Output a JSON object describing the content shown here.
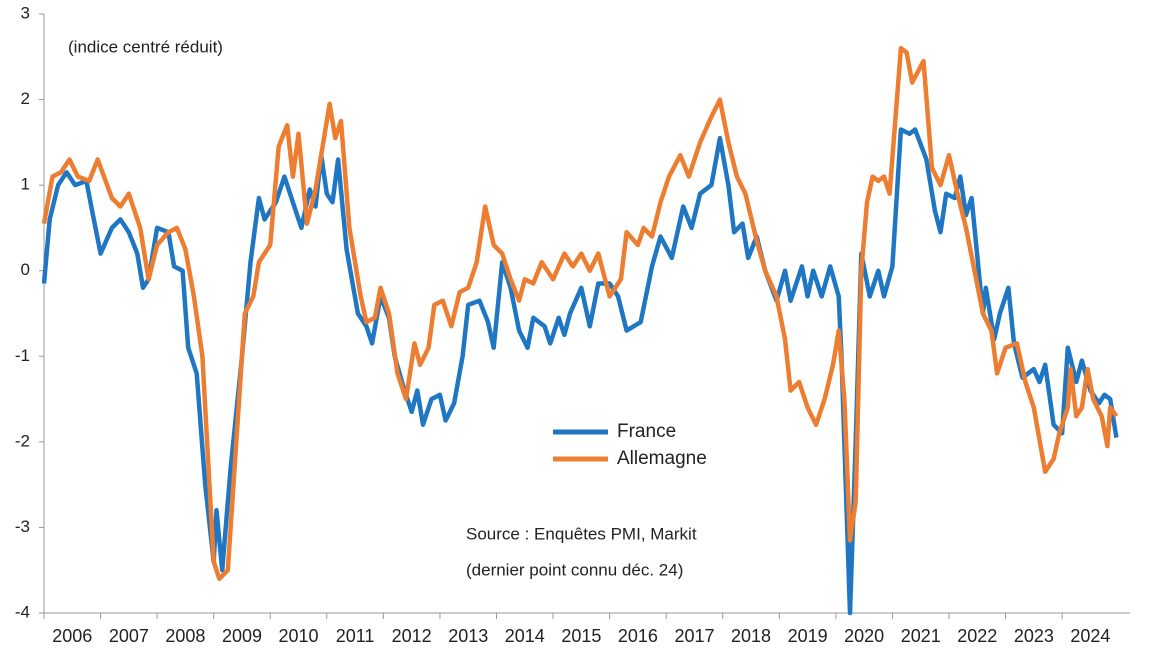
{
  "chart_data": {
    "type": "line",
    "annotations": [
      "(indice centré réduit)",
      "Source : Enquêtes PMI, Markit",
      "(dernier point connu déc. 24)"
    ],
    "xlim": [
      2006,
      2025.2
    ],
    "xticks": [
      2006,
      2007,
      2008,
      2009,
      2010,
      2011,
      2012,
      2013,
      2014,
      2015,
      2016,
      2017,
      2018,
      2019,
      2020,
      2021,
      2022,
      2023,
      2024
    ],
    "ylim": [
      -4,
      3
    ],
    "yticks": [
      -4,
      -3,
      -2,
      -1,
      0,
      1,
      2,
      3
    ],
    "grid": false,
    "legend": "center",
    "series": [
      {
        "name": "France",
        "color": "#1f77c4",
        "x": [
          2006.0,
          2006.1,
          2006.25,
          2006.4,
          2006.55,
          2006.75,
          2006.85,
          2007.0,
          2007.2,
          2007.35,
          2007.5,
          2007.65,
          2007.75,
          2007.85,
          2008.0,
          2008.2,
          2008.3,
          2008.45,
          2008.55,
          2008.7,
          2008.85,
          2009.0,
          2009.05,
          2009.15,
          2009.3,
          2009.5,
          2009.65,
          2009.8,
          2009.9,
          2010.1,
          2010.25,
          2010.45,
          2010.55,
          2010.7,
          2010.8,
          2010.9,
          2011.0,
          2011.1,
          2011.2,
          2011.35,
          2011.55,
          2011.7,
          2011.8,
          2011.95,
          2012.1,
          2012.2,
          2012.35,
          2012.5,
          2012.6,
          2012.7,
          2012.85,
          2013.0,
          2013.1,
          2013.25,
          2013.4,
          2013.5,
          2013.7,
          2013.85,
          2013.95,
          2014.1,
          2014.25,
          2014.4,
          2014.55,
          2014.65,
          2014.85,
          2014.95,
          2015.1,
          2015.2,
          2015.3,
          2015.5,
          2015.65,
          2015.8,
          2016.0,
          2016.15,
          2016.3,
          2016.55,
          2016.75,
          2016.9,
          2017.1,
          2017.3,
          2017.45,
          2017.6,
          2017.8,
          2017.95,
          2018.1,
          2018.2,
          2018.35,
          2018.45,
          2018.6,
          2018.75,
          2018.95,
          2019.1,
          2019.2,
          2019.4,
          2019.5,
          2019.6,
          2019.75,
          2019.9,
          2020.05,
          2020.1,
          2020.25,
          2020.35,
          2020.45,
          2020.6,
          2020.75,
          2020.85,
          2021.0,
          2021.15,
          2021.3,
          2021.4,
          2021.6,
          2021.75,
          2021.85,
          2021.95,
          2022.1,
          2022.2,
          2022.3,
          2022.4,
          2022.6,
          2022.65,
          2022.8,
          2022.9,
          2023.05,
          2023.15,
          2023.3,
          2023.5,
          2023.6,
          2023.7,
          2023.85,
          2024.0,
          2024.1,
          2024.25,
          2024.35,
          2024.5,
          2024.65,
          2024.75,
          2024.85,
          2024.96
        ],
        "values": [
          -0.15,
          0.6,
          1.0,
          1.15,
          1.0,
          1.05,
          0.7,
          0.2,
          0.5,
          0.6,
          0.45,
          0.2,
          -0.2,
          -0.1,
          0.5,
          0.45,
          0.05,
          0.0,
          -0.9,
          -1.2,
          -2.5,
          -3.4,
          -2.8,
          -3.5,
          -2.3,
          -1.0,
          0.1,
          0.85,
          0.6,
          0.8,
          1.1,
          0.7,
          0.5,
          0.95,
          0.75,
          1.35,
          0.9,
          0.8,
          1.3,
          0.25,
          -0.5,
          -0.65,
          -0.85,
          -0.3,
          -0.55,
          -1.0,
          -1.35,
          -1.65,
          -1.4,
          -1.8,
          -1.5,
          -1.45,
          -1.75,
          -1.55,
          -1.0,
          -0.4,
          -0.35,
          -0.6,
          -0.9,
          0.1,
          -0.2,
          -0.7,
          -0.9,
          -0.55,
          -0.65,
          -0.85,
          -0.55,
          -0.75,
          -0.5,
          -0.2,
          -0.65,
          -0.15,
          -0.15,
          -0.3,
          -0.7,
          -0.6,
          0.05,
          0.4,
          0.15,
          0.75,
          0.5,
          0.9,
          1.0,
          1.55,
          1.0,
          0.45,
          0.55,
          0.15,
          0.4,
          0.0,
          -0.35,
          0.0,
          -0.35,
          0.05,
          -0.3,
          0.0,
          -0.3,
          0.05,
          -0.3,
          -1.0,
          -4.0,
          -2.0,
          0.2,
          -0.3,
          0.0,
          -0.3,
          0.05,
          1.65,
          1.6,
          1.65,
          1.3,
          0.7,
          0.45,
          0.9,
          0.85,
          1.1,
          0.65,
          0.85,
          -0.5,
          -0.2,
          -0.8,
          -0.5,
          -0.2,
          -0.85,
          -1.25,
          -1.15,
          -1.3,
          -1.1,
          -1.8,
          -1.9,
          -0.9,
          -1.3,
          -1.05,
          -1.4,
          -1.55,
          -1.45,
          -1.5,
          -1.95
        ]
      },
      {
        "name": "Allemagne",
        "color": "#ed7d31",
        "x": [
          2006.0,
          2006.15,
          2006.3,
          2006.45,
          2006.6,
          2006.8,
          2006.95,
          2007.2,
          2007.35,
          2007.5,
          2007.7,
          2007.85,
          2008.0,
          2008.2,
          2008.35,
          2008.5,
          2008.65,
          2008.8,
          2009.0,
          2009.1,
          2009.25,
          2009.4,
          2009.55,
          2009.7,
          2009.8,
          2010.0,
          2010.15,
          2010.3,
          2010.4,
          2010.5,
          2010.65,
          2010.8,
          2010.95,
          2011.05,
          2011.15,
          2011.25,
          2011.4,
          2011.6,
          2011.7,
          2011.85,
          2011.95,
          2012.1,
          2012.25,
          2012.4,
          2012.55,
          2012.65,
          2012.8,
          2012.9,
          2013.05,
          2013.2,
          2013.35,
          2013.5,
          2013.65,
          2013.8,
          2013.95,
          2014.1,
          2014.25,
          2014.4,
          2014.5,
          2014.65,
          2014.8,
          2015.0,
          2015.2,
          2015.35,
          2015.5,
          2015.65,
          2015.8,
          2016.0,
          2016.2,
          2016.3,
          2016.5,
          2016.6,
          2016.75,
          2016.9,
          2017.05,
          2017.25,
          2017.4,
          2017.6,
          2017.8,
          2017.95,
          2018.1,
          2018.25,
          2018.4,
          2018.6,
          2018.75,
          2018.95,
          2019.1,
          2019.2,
          2019.35,
          2019.5,
          2019.65,
          2019.8,
          2019.95,
          2020.05,
          2020.15,
          2020.25,
          2020.35,
          2020.45,
          2020.55,
          2020.65,
          2020.75,
          2020.85,
          2020.95,
          2021.15,
          2021.25,
          2021.35,
          2021.55,
          2021.7,
          2021.85,
          2022.0,
          2022.15,
          2022.3,
          2022.45,
          2022.6,
          2022.75,
          2022.85,
          2023.0,
          2023.2,
          2023.35,
          2023.5,
          2023.7,
          2023.85,
          2023.95,
          2024.1,
          2024.15,
          2024.25,
          2024.35,
          2024.45,
          2024.55,
          2024.7,
          2024.8,
          2024.85,
          2024.96
        ],
        "values": [
          0.55,
          1.1,
          1.15,
          1.3,
          1.1,
          1.05,
          1.3,
          0.85,
          0.75,
          0.9,
          0.5,
          -0.1,
          0.3,
          0.45,
          0.5,
          0.25,
          -0.3,
          -1.0,
          -3.4,
          -3.6,
          -3.5,
          -2.0,
          -0.5,
          -0.3,
          0.1,
          0.3,
          1.45,
          1.7,
          1.1,
          1.6,
          0.55,
          0.95,
          1.55,
          1.95,
          1.55,
          1.75,
          0.5,
          -0.3,
          -0.6,
          -0.55,
          -0.2,
          -0.5,
          -1.2,
          -1.5,
          -0.85,
          -1.1,
          -0.9,
          -0.4,
          -0.35,
          -0.65,
          -0.25,
          -0.2,
          0.1,
          0.75,
          0.3,
          0.2,
          -0.1,
          -0.35,
          -0.1,
          -0.15,
          0.1,
          -0.1,
          0.2,
          0.05,
          0.2,
          0.0,
          0.2,
          -0.3,
          -0.1,
          0.45,
          0.3,
          0.5,
          0.4,
          0.8,
          1.1,
          1.35,
          1.1,
          1.5,
          1.8,
          2.0,
          1.5,
          1.1,
          0.9,
          0.35,
          0.0,
          -0.3,
          -0.8,
          -1.4,
          -1.3,
          -1.6,
          -1.8,
          -1.5,
          -1.1,
          -0.7,
          -1.5,
          -3.15,
          -2.7,
          0.0,
          0.8,
          1.1,
          1.05,
          1.1,
          0.9,
          2.6,
          2.55,
          2.2,
          2.45,
          1.2,
          1.0,
          1.35,
          0.9,
          0.5,
          0.0,
          -0.5,
          -0.7,
          -1.2,
          -0.9,
          -0.85,
          -1.3,
          -1.6,
          -2.35,
          -2.2,
          -1.9,
          -1.6,
          -1.15,
          -1.7,
          -1.6,
          -1.15,
          -1.5,
          -1.7,
          -2.05,
          -1.6,
          -1.7
        ]
      }
    ]
  }
}
